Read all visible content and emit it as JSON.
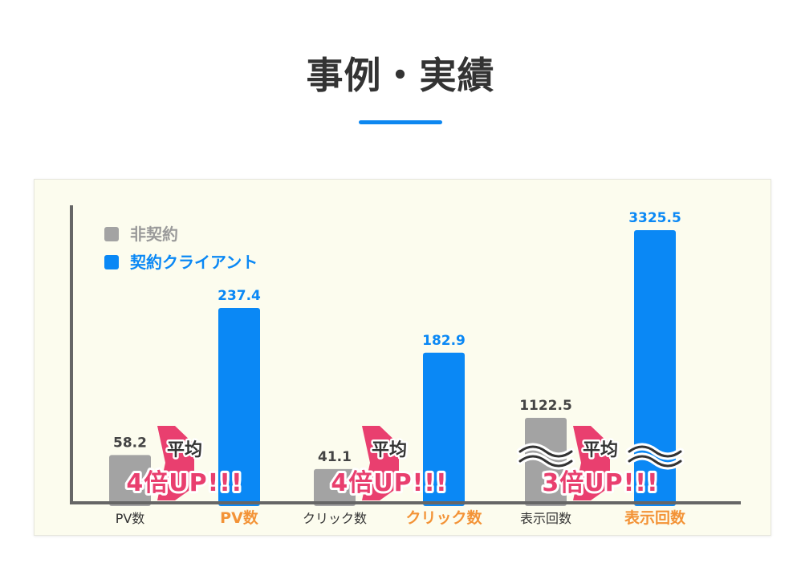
{
  "header": {
    "title": "事例・実績"
  },
  "colors": {
    "accent": "#0d87f0",
    "non_contract": "#a3a3a3",
    "contract": "#0a88f5",
    "highlight_label": "#f39337",
    "badge_pink": "#e93f6f",
    "axis": "#666666",
    "panel_bg": "#fcfcee"
  },
  "chart_data": {
    "type": "bar",
    "categories": [
      "PV数",
      "クリック数",
      "表示回数"
    ],
    "category_labels": [
      {
        "non_contract": "PV数",
        "contract": "PV数"
      },
      {
        "non_contract": "クリック数",
        "contract": "クリック数"
      },
      {
        "non_contract": "表示回数",
        "contract": "表示回数"
      }
    ],
    "series": [
      {
        "name": "非契約",
        "values": [
          58.2,
          41.1,
          1122.5
        ],
        "value_labels": [
          "58.2",
          "41.1",
          "1122.5"
        ]
      },
      {
        "name": "契約クライアント",
        "values": [
          237.4,
          182.9,
          3325.5
        ],
        "value_labels": [
          "237.4",
          "182.9",
          "3325.5"
        ]
      }
    ],
    "axis_break_on_category": 2,
    "legend_position": "top-left",
    "badges": [
      {
        "heading": "平均",
        "text": "4倍UP!!!"
      },
      {
        "heading": "平均",
        "text": "4倍UP!!!"
      },
      {
        "heading": "平均",
        "text": "3倍UP!!!"
      }
    ]
  }
}
